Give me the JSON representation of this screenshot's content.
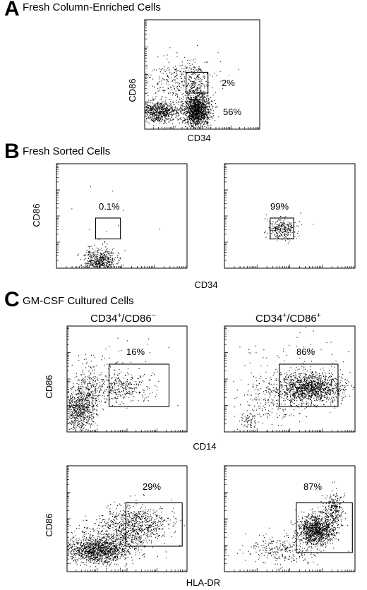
{
  "panels": [
    {
      "letter": "A",
      "title": "Fresh Column-Enriched Cells"
    },
    {
      "letter": "B",
      "title": "Fresh Sorted Cells"
    },
    {
      "letter": "C",
      "title": "GM-CSF Cultured Cells"
    }
  ],
  "columns": {
    "left": {
      "main": "CD34",
      "sup1": "+",
      "sep": "/CD86",
      "sup2": "−"
    },
    "right": {
      "main": "CD34",
      "sup1": "+",
      "sep": "/CD86",
      "sup2": "+"
    }
  },
  "chart_data": [
    {
      "id": "A",
      "type": "scatter",
      "xlabel": "CD34",
      "ylabel": "CD86",
      "scale": "log",
      "gates": [
        {
          "label": "2%"
        }
      ],
      "annotations": [
        "2%",
        "56%"
      ]
    },
    {
      "id": "B-left",
      "type": "scatter",
      "xlabel": "",
      "ylabel": "CD86",
      "scale": "log",
      "gates": [
        {
          "label": "0.1%"
        }
      ],
      "annotations": [
        "0.1%"
      ]
    },
    {
      "id": "B-right",
      "type": "scatter",
      "xlabel": "",
      "ylabel": "",
      "scale": "log",
      "gates": [
        {
          "label": "99%"
        }
      ],
      "annotations": [
        "99%"
      ]
    },
    {
      "id": "B-shared-xlabel",
      "xlabel": "CD34"
    },
    {
      "id": "C1-left",
      "type": "scatter",
      "xlabel": "",
      "ylabel": "CD86",
      "scale": "log",
      "gates": [
        {
          "label": "16%"
        }
      ],
      "annotations": [
        "16%"
      ]
    },
    {
      "id": "C1-right",
      "type": "scatter",
      "xlabel": "",
      "ylabel": "",
      "scale": "log",
      "gates": [
        {
          "label": "86%"
        }
      ],
      "annotations": [
        "86%"
      ]
    },
    {
      "id": "C1-shared-xlabel",
      "xlabel": "CD14"
    },
    {
      "id": "C2-left",
      "type": "scatter",
      "xlabel": "",
      "ylabel": "CD86",
      "scale": "log",
      "gates": [
        {
          "label": "29%"
        }
      ],
      "annotations": [
        "29%"
      ]
    },
    {
      "id": "C2-right",
      "type": "scatter",
      "xlabel": "",
      "ylabel": "",
      "scale": "log",
      "gates": [
        {
          "label": "87%"
        }
      ],
      "annotations": [
        "87%"
      ]
    },
    {
      "id": "C2-shared-xlabel",
      "xlabel": "HLA-DR"
    }
  ]
}
